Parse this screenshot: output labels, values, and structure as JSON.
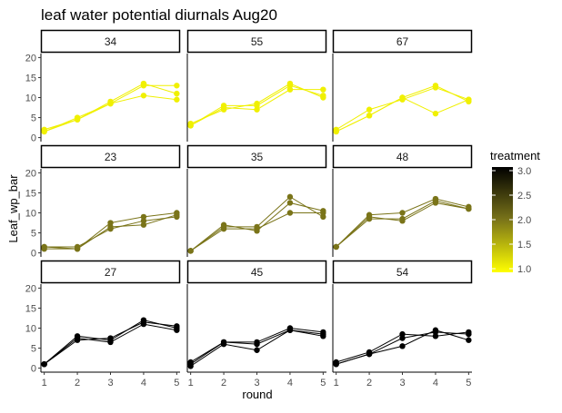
{
  "chart_data": {
    "type": "line",
    "title": "leaf water potential diurnals Aug20",
    "xlabel": "round",
    "ylabel": "Leaf_wp_bar",
    "x": [
      1,
      2,
      3,
      4,
      5
    ],
    "xlim": [
      0.9,
      5.1
    ],
    "ylim": [
      -1,
      21
    ],
    "x_ticks": [
      "1",
      "2",
      "3",
      "4",
      "5"
    ],
    "y_ticks": [
      "0",
      "5",
      "10",
      "15",
      "20"
    ],
    "grid": false,
    "legend": {
      "title": "treatment",
      "placement": "right",
      "ticks": [
        "3.0",
        "2.5",
        "2.0",
        "1.5",
        "1.0"
      ],
      "range": [
        1.0,
        3.0
      ],
      "color_low": "#ffff00",
      "color_high": "#000000"
    },
    "panels": [
      {
        "label": "34",
        "treatment": 1,
        "color": "#f0f000",
        "series": [
          {
            "values": [
              2.0,
              4.5,
              9.0,
              13.5,
              11.0
            ]
          },
          {
            "values": [
              1.5,
              5.0,
              8.5,
              13.0,
              13.0
            ]
          },
          {
            "values": [
              1.5,
              4.5,
              8.5,
              10.5,
              9.5
            ]
          }
        ]
      },
      {
        "label": "55",
        "treatment": 1,
        "color": "#f0f000",
        "series": [
          {
            "values": [
              3.0,
              8.0,
              8.0,
              13.0,
              10.5
            ]
          },
          {
            "values": [
              3.0,
              7.5,
              7.0,
              12.0,
              12.0
            ]
          },
          {
            "values": [
              3.5,
              7.0,
              8.5,
              13.5,
              10.0
            ]
          }
        ]
      },
      {
        "label": "67",
        "treatment": 1,
        "color": "#f0f000",
        "series": [
          {
            "values": [
              2.0,
              7.0,
              9.5,
              12.5,
              9.5
            ]
          },
          {
            "values": [
              1.5,
              5.5,
              10.0,
              6.0,
              9.5
            ]
          },
          {
            "values": [
              1.5,
              5.5,
              10.0,
              13.0,
              9.0
            ]
          }
        ]
      },
      {
        "label": "23",
        "treatment": 2,
        "color": "#7a7419",
        "series": [
          {
            "values": [
              1.5,
              1.0,
              7.5,
              9.0,
              10.0
            ]
          },
          {
            "values": [
              1.0,
              1.0,
              6.5,
              7.0,
              9.5
            ]
          },
          {
            "values": [
              1.5,
              1.5,
              6.0,
              8.0,
              9.0
            ]
          }
        ]
      },
      {
        "label": "35",
        "treatment": 2,
        "color": "#7a7419",
        "series": [
          {
            "values": [
              0.5,
              6.5,
              6.5,
              14.0,
              9.0
            ]
          },
          {
            "values": [
              0.5,
              7.0,
              5.5,
              12.5,
              10.5
            ]
          },
          {
            "values": [
              0.5,
              6.0,
              6.0,
              10.0,
              10.0
            ]
          }
        ]
      },
      {
        "label": "48",
        "treatment": 2,
        "color": "#7a7419",
        "series": [
          {
            "values": [
              1.5,
              9.5,
              10.0,
              13.5,
              11.5
            ]
          },
          {
            "values": [
              1.5,
              9.0,
              8.0,
              12.5,
              11.0
            ]
          },
          {
            "values": [
              1.5,
              8.5,
              8.5,
              13.0,
              11.0
            ]
          }
        ]
      },
      {
        "label": "27",
        "treatment": 3,
        "color": "#000000",
        "series": [
          {
            "values": [
              1.0,
              8.0,
              7.0,
              12.0,
              10.0
            ]
          },
          {
            "values": [
              1.0,
              7.5,
              6.5,
              11.0,
              9.5
            ]
          },
          {
            "values": [
              1.0,
              7.0,
              7.5,
              11.5,
              10.5
            ]
          }
        ]
      },
      {
        "label": "45",
        "treatment": 3,
        "color": "#000000",
        "series": [
          {
            "values": [
              1.5,
              6.5,
              6.5,
              10.0,
              9.0
            ]
          },
          {
            "values": [
              0.5,
              6.0,
              4.5,
              9.5,
              8.5
            ]
          },
          {
            "values": [
              1.0,
              6.5,
              6.0,
              9.5,
              8.0
            ]
          }
        ]
      },
      {
        "label": "54",
        "treatment": 3,
        "color": "#000000",
        "series": [
          {
            "values": [
              1.5,
              4.0,
              8.5,
              8.0,
              9.0
            ]
          },
          {
            "values": [
              1.0,
              3.5,
              5.5,
              9.5,
              7.0
            ]
          },
          {
            "values": [
              1.0,
              3.5,
              7.5,
              9.0,
              8.5
            ]
          }
        ]
      }
    ]
  }
}
